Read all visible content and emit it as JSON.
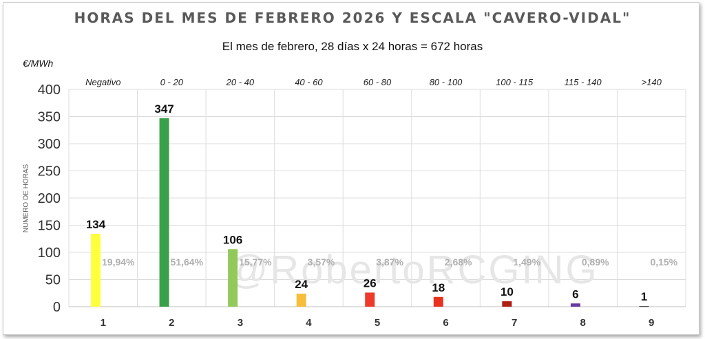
{
  "chart_data": {
    "type": "bar",
    "title": "HORAS DEL MES DE FEBRERO 2026 Y ESCALA \"CAVERO-VIDAL\"",
    "subtitle": "El mes de febrero, 28 días x 24 horas  = 672 horas",
    "unit_label": "€/MWh",
    "ylabel": "NUMERO DE HORAS",
    "ylim": [
      0,
      400
    ],
    "yticks": [
      0,
      50,
      100,
      150,
      200,
      250,
      300,
      350,
      400
    ],
    "categories": [
      "1",
      "2",
      "3",
      "4",
      "5",
      "6",
      "7",
      "8",
      "9"
    ],
    "ranges": [
      "Negativo",
      "0 - 20",
      "20 - 40",
      "40 - 60",
      "60 - 80",
      "80 - 100",
      "100 - 115",
      "115 - 140",
      ">140"
    ],
    "values": [
      134,
      347,
      106,
      24,
      26,
      18,
      10,
      6,
      1
    ],
    "percentages": [
      "19,94%",
      "51,64%",
      "15,77%",
      "3,57%",
      "3,87%",
      "2,68%",
      "1,49%",
      "0,89%",
      "0,15%"
    ],
    "colors": [
      "#ffff3c",
      "#3aa14a",
      "#92c95a",
      "#f6be3a",
      "#ee3a2b",
      "#e8321e",
      "#b01e14",
      "#6a3aa3",
      "#222222"
    ],
    "grid": true,
    "watermark": "@RobertoRCGING"
  }
}
